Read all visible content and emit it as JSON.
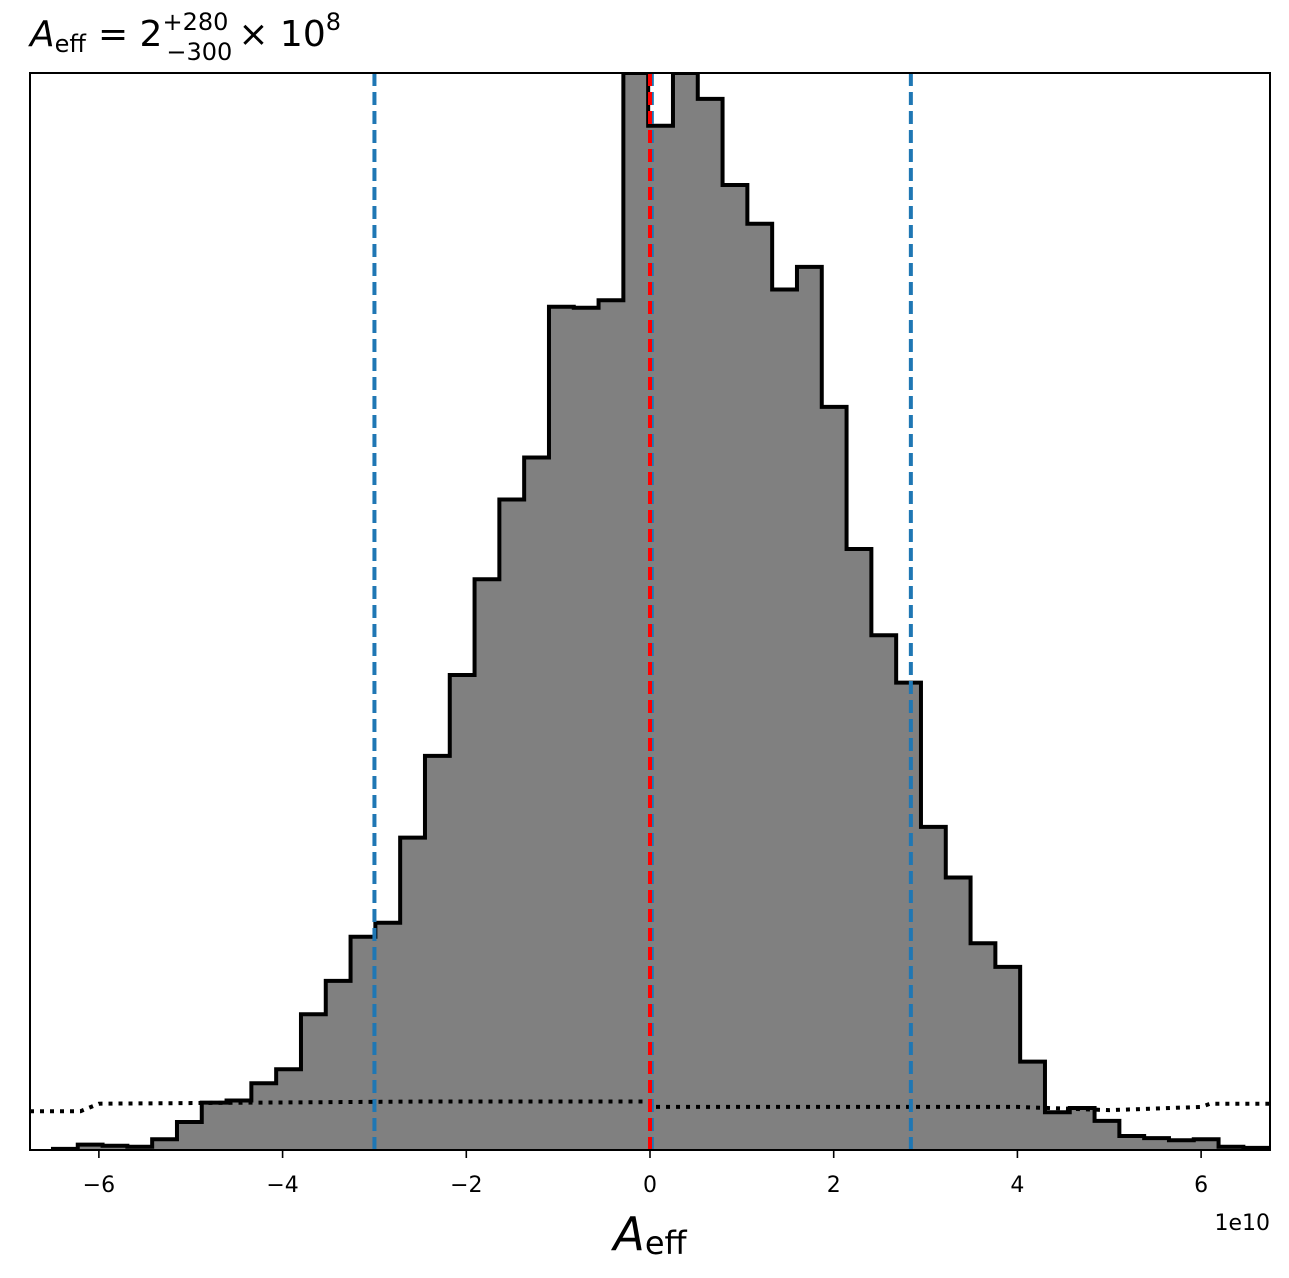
{
  "chart_data": {
    "type": "histogram",
    "title": {
      "symbol": "A",
      "subscript": "eff",
      "equals": "= 2",
      "upper": "+280",
      "lower": "−300",
      "times": "× 10",
      "exponent": "8"
    },
    "xlabel": {
      "symbol": "A",
      "subscript": "eff"
    },
    "x_multiplier_label": "1e10",
    "xlim": [
      -6.75,
      6.75
    ],
    "ylim": [
      0,
      1.0
    ],
    "x_ticks": [
      -6,
      -4,
      -2,
      0,
      2,
      4,
      6
    ],
    "x_tick_labels": [
      "−6",
      "−4",
      "−2",
      "0",
      "2",
      "4",
      "6"
    ],
    "y_ticks_visible": false,
    "bin_width": 0.27,
    "bin_edges_start": -6.5,
    "values": [
      0.001,
      0.005,
      0.004,
      0.003,
      0.01,
      0.026,
      0.044,
      0.046,
      0.062,
      0.075,
      0.126,
      0.157,
      0.198,
      0.211,
      0.29,
      0.366,
      0.441,
      0.53,
      0.604,
      0.643,
      0.783,
      0.782,
      0.789,
      1.0,
      0.951,
      1.0,
      0.976,
      0.896,
      0.86,
      0.799,
      0.82,
      0.69,
      0.558,
      0.478,
      0.434,
      0.3,
      0.253,
      0.192,
      0.17,
      0.082,
      0.035,
      0.039,
      0.027,
      0.013,
      0.011,
      0.009,
      0.01,
      0.003,
      0.002
    ],
    "hist_fill": "#808080",
    "hist_edge": "#000000",
    "prior_line": {
      "style": "dotted",
      "color": "#000000",
      "points": [
        [
          -6.75,
          0.036
        ],
        [
          -6.2,
          0.036
        ],
        [
          -6.0,
          0.043
        ],
        [
          -2.5,
          0.045
        ],
        [
          0,
          0.045
        ],
        [
          0.05,
          0.04
        ],
        [
          4.0,
          0.04
        ],
        [
          5.0,
          0.037
        ],
        [
          6.0,
          0.04
        ],
        [
          6.1,
          0.043
        ],
        [
          6.75,
          0.043
        ]
      ]
    },
    "vlines": [
      {
        "x": -3.0,
        "color": "#1f77b4",
        "style": "dashed"
      },
      {
        "x": 0.02,
        "color": "#1f77b4",
        "style": "dashed"
      },
      {
        "x": 2.84,
        "color": "#1f77b4",
        "style": "dashed"
      },
      {
        "x": 0.0,
        "color": "#ff0000",
        "style": "dashed"
      }
    ],
    "grid": false
  }
}
